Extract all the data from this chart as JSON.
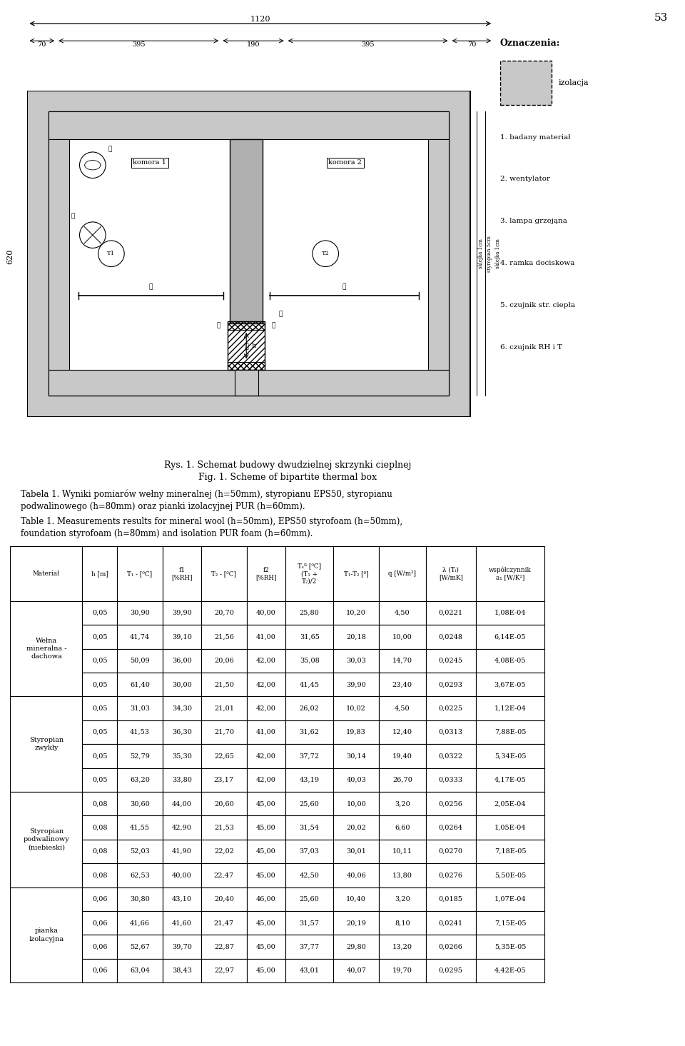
{
  "page_number": "53",
  "diagram": {
    "title_pl": "Rys. 1. Schemat budowy dwudzielnej skrzynki cieplnej",
    "title_en": "Fig. 1. Scheme of bipartite thermal box",
    "dim_total": "1120",
    "dim_left": "70",
    "dim_mid_left": "395",
    "dim_center": "190",
    "dim_mid_right": "395",
    "dim_right": "70",
    "dim_height": "620",
    "legend_title": "Oznaczenia:",
    "legend_item": "izolacja",
    "legend_items": [
      "1. badany materiał",
      "2. wentylator",
      "3. lampa grzejąna",
      "4. ramka dociskowa",
      "5. czujnik str. ciepła",
      "6. czujnik RH i T"
    ],
    "side_labels": [
      "sklejka 1cm",
      "styropian 5cm",
      "sklejka 1cm"
    ]
  },
  "captions": {
    "pl1": "Tabela 1. Wyniki pomiarów wełny mineralnej (h=50mm), styropianu EPS50, styropianu",
    "pl2": "podwalinowego (h=80mm) oraz pianki izolacyjnej PUR (h=60mm).",
    "en1": "Table 1. Measurements results for mineral wool (h=50mm), EPS50 styrofoam (h=50mm),",
    "en2": "foundation styrofoam (h=80mm) and isolation PUR foam (h=60mm)."
  },
  "fig_caption_pl": "Rys. 1. Schemat budowy dwudzielnej skrzynki cieplnej",
  "fig_caption_en": "Fig. 1. Scheme of bipartite thermal box",
  "table": {
    "col_headers": [
      "Materiał",
      "h [m]",
      "T₁ - [⁰C]",
      "f1\n[%RH]",
      "T₂ - [⁰C]",
      "f2\n[%RH]",
      "Tₛᴿ [⁰C]\n(T₁ +\nT₂)/2",
      "T₁-T₂ [⁰]",
      "q [W/m²]",
      "λ (Tᵢ)\n[W/mK]",
      "współczynnik\na₁ [W/K²]"
    ],
    "groups": [
      {
        "name": "Wełna\nmineralna -\ndachowa",
        "rows": [
          [
            "0,05",
            "30,90",
            "39,90",
            "20,70",
            "40,00",
            "25,80",
            "10,20",
            "4,50",
            "0,0221",
            "1,08E-04"
          ],
          [
            "0,05",
            "41,74",
            "39,10",
            "21,56",
            "41,00",
            "31,65",
            "20,18",
            "10,00",
            "0,0248",
            "6,14E-05"
          ],
          [
            "0,05",
            "50,09",
            "36,00",
            "20,06",
            "42,00",
            "35,08",
            "30,03",
            "14,70",
            "0,0245",
            "4,08E-05"
          ],
          [
            "0,05",
            "61,40",
            "30,00",
            "21,50",
            "42,00",
            "41,45",
            "39,90",
            "23,40",
            "0,0293",
            "3,67E-05"
          ]
        ]
      },
      {
        "name": "Styropian\nzwykły",
        "rows": [
          [
            "0,05",
            "31,03",
            "34,30",
            "21,01",
            "42,00",
            "26,02",
            "10,02",
            "4,50",
            "0,0225",
            "1,12E-04"
          ],
          [
            "0,05",
            "41,53",
            "36,30",
            "21,70",
            "41,00",
            "31,62",
            "19,83",
            "12,40",
            "0,0313",
            "7,88E-05"
          ],
          [
            "0,05",
            "52,79",
            "35,30",
            "22,65",
            "42,00",
            "37,72",
            "30,14",
            "19,40",
            "0,0322",
            "5,34E-05"
          ],
          [
            "0,05",
            "63,20",
            "33,80",
            "23,17",
            "42,00",
            "43,19",
            "40,03",
            "26,70",
            "0,0333",
            "4,17E-05"
          ]
        ]
      },
      {
        "name": "Styropian\npodwalinowy\n(niebieski)",
        "rows": [
          [
            "0,08",
            "30,60",
            "44,00",
            "20,60",
            "45,00",
            "25,60",
            "10,00",
            "3,20",
            "0,0256",
            "2,05E-04"
          ],
          [
            "0,08",
            "41,55",
            "42,90",
            "21,53",
            "45,00",
            "31,54",
            "20,02",
            "6,60",
            "0,0264",
            "1,05E-04"
          ],
          [
            "0,08",
            "52,03",
            "41,90",
            "22,02",
            "45,00",
            "37,03",
            "30,01",
            "10,11",
            "0,0270",
            "7,18E-05"
          ],
          [
            "0,08",
            "62,53",
            "40,00",
            "22,47",
            "45,00",
            "42,50",
            "40,06",
            "13,80",
            "0,0276",
            "5,50E-05"
          ]
        ]
      },
      {
        "name": "pianka\nizolacyjna",
        "rows": [
          [
            "0,06",
            "30,80",
            "43,10",
            "20,40",
            "46,00",
            "25,60",
            "10,40",
            "3,20",
            "0,0185",
            "1,07E-04"
          ],
          [
            "0,06",
            "41,66",
            "41,60",
            "21,47",
            "45,00",
            "31,57",
            "20,19",
            "8,10",
            "0,0241",
            "7,15E-05"
          ],
          [
            "0,06",
            "52,67",
            "39,70",
            "22,87",
            "45,00",
            "37,77",
            "29,80",
            "13,20",
            "0,0266",
            "5,35E-05"
          ],
          [
            "0,06",
            "63,04",
            "38,43",
            "22,97",
            "45,00",
            "43,01",
            "40,07",
            "19,70",
            "0,0295",
            "4,42E-05"
          ]
        ]
      }
    ]
  }
}
